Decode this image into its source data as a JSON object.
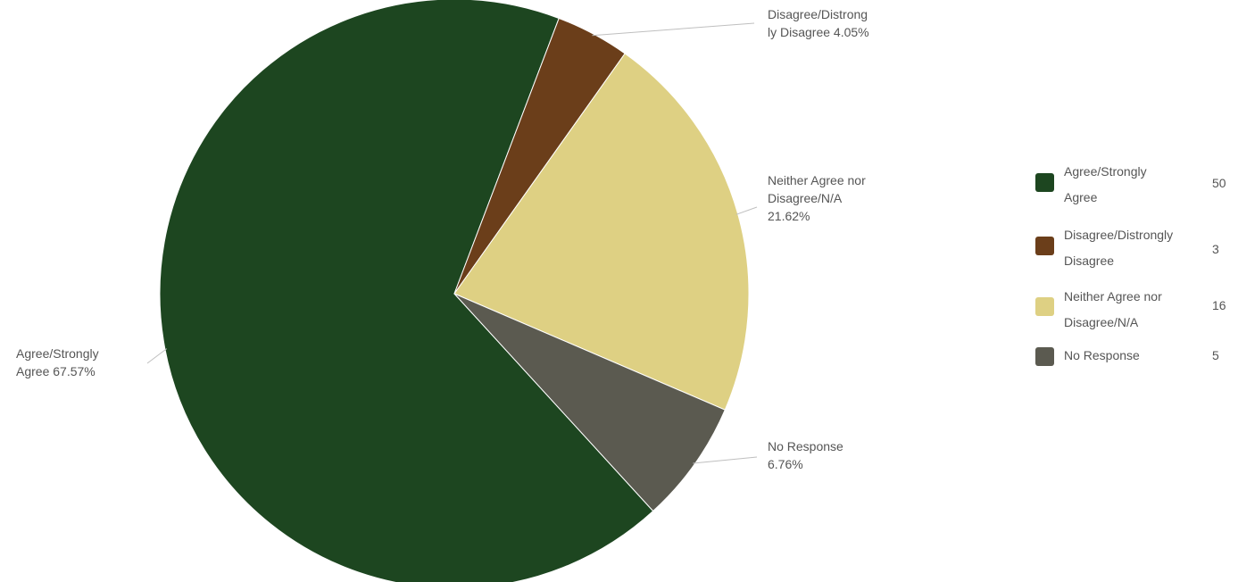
{
  "chart_data": {
    "type": "pie",
    "title": "",
    "slices": [
      {
        "label": "Agree/Strongly Agree",
        "value": 50,
        "percent_label": "67.57%",
        "color": "#1d4620"
      },
      {
        "label": "Disagree/Distrongly Disagree",
        "value": 3,
        "percent_label": "4.05%",
        "color": "#6b3e1a"
      },
      {
        "label": "Neither Agree nor Disagree/N/A",
        "value": 16,
        "percent_label": "21.62%",
        "color": "#ded083"
      },
      {
        "label": "No Response",
        "value": 5,
        "percent_label": "6.76%",
        "color": "#5b5a50"
      }
    ],
    "data_labels": [
      {
        "line1": "Disagree/Distrong",
        "line2": "ly Disagree 4.05%",
        "line3": ""
      },
      {
        "line1": "Neither Agree nor",
        "line2": "Disagree/N/A",
        "line3": "21.62%"
      },
      {
        "line1": "No Response",
        "line2": "6.76%",
        "line3": ""
      },
      {
        "line1": "Agree/Strongly",
        "line2": "Agree 67.57%",
        "line3": ""
      }
    ],
    "legend": {
      "position": "right",
      "items": [
        {
          "line1": "Agree/Strongly",
          "line2": "Agree",
          "value": "50",
          "color": "#1d4620"
        },
        {
          "line1": "Disagree/Distrongly",
          "line2": "Disagree",
          "value": "3",
          "color": "#6b3e1a"
        },
        {
          "line1": "Neither Agree nor",
          "line2": "Disagree/N/A",
          "value": "16",
          "color": "#ded083"
        },
        {
          "line1": "No Response",
          "line2": "",
          "value": "5",
          "color": "#5b5a50"
        }
      ]
    }
  }
}
